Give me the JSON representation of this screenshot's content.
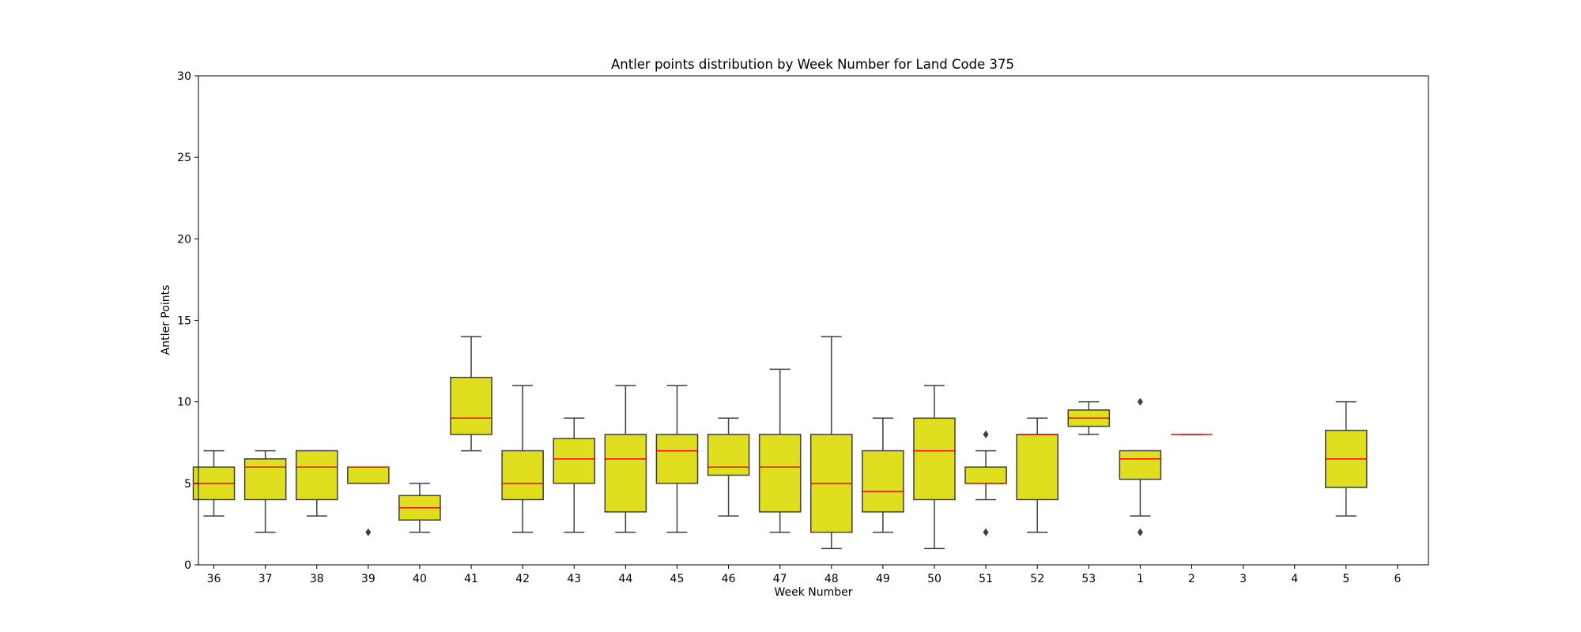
{
  "chart_data": {
    "type": "box",
    "title": "Antler points distribution by Week Number for Land Code 375",
    "xlabel": "Week Number",
    "ylabel": "Antler Points",
    "ylim": [
      0,
      30
    ],
    "yticks": [
      0,
      5,
      10,
      15,
      20,
      25,
      30
    ],
    "grid": false,
    "box_color": "#dfdf20",
    "median_color": "#ff0000",
    "line_color": "#3f3f3f",
    "categories": [
      "36",
      "37",
      "38",
      "39",
      "40",
      "41",
      "42",
      "43",
      "44",
      "45",
      "46",
      "47",
      "48",
      "49",
      "50",
      "51",
      "52",
      "53",
      "1",
      "2",
      "3",
      "4",
      "5",
      "6"
    ],
    "boxes": [
      {
        "week": "36",
        "whislo": 3,
        "q1": 4,
        "med": 5,
        "q3": 6,
        "whishi": 7,
        "fliers": []
      },
      {
        "week": "37",
        "whislo": 2,
        "q1": 4,
        "med": 6,
        "q3": 6.5,
        "whishi": 7,
        "fliers": []
      },
      {
        "week": "38",
        "whislo": 3,
        "q1": 4,
        "med": 6,
        "q3": 7,
        "whishi": 7,
        "fliers": []
      },
      {
        "week": "39",
        "whislo": 5,
        "q1": 5,
        "med": 6,
        "q3": 6,
        "whishi": 6,
        "fliers": [
          2
        ]
      },
      {
        "week": "40",
        "whislo": 2,
        "q1": 2.75,
        "med": 3.5,
        "q3": 4.25,
        "whishi": 5,
        "fliers": []
      },
      {
        "week": "41",
        "whislo": 7,
        "q1": 8,
        "med": 9,
        "q3": 11.5,
        "whishi": 14,
        "fliers": []
      },
      {
        "week": "42",
        "whislo": 2,
        "q1": 4,
        "med": 5,
        "q3": 7,
        "whishi": 11,
        "fliers": []
      },
      {
        "week": "43",
        "whislo": 2,
        "q1": 5,
        "med": 6.5,
        "q3": 7.75,
        "whishi": 9,
        "fliers": []
      },
      {
        "week": "44",
        "whislo": 2,
        "q1": 3.25,
        "med": 6.5,
        "q3": 8,
        "whishi": 11,
        "fliers": []
      },
      {
        "week": "45",
        "whislo": 2,
        "q1": 5,
        "med": 7,
        "q3": 8,
        "whishi": 11,
        "fliers": []
      },
      {
        "week": "46",
        "whislo": 3,
        "q1": 5.5,
        "med": 6,
        "q3": 8,
        "whishi": 9,
        "fliers": []
      },
      {
        "week": "47",
        "whislo": 2,
        "q1": 3.25,
        "med": 6,
        "q3": 8,
        "whishi": 12,
        "fliers": []
      },
      {
        "week": "48",
        "whislo": 1,
        "q1": 2,
        "med": 5,
        "q3": 8,
        "whishi": 14,
        "fliers": []
      },
      {
        "week": "49",
        "whislo": 2,
        "q1": 3.25,
        "med": 4.5,
        "q3": 7,
        "whishi": 9,
        "fliers": []
      },
      {
        "week": "50",
        "whislo": 1,
        "q1": 4,
        "med": 7,
        "q3": 9,
        "whishi": 11,
        "fliers": []
      },
      {
        "week": "51",
        "whislo": 4,
        "q1": 5,
        "med": 5,
        "q3": 6,
        "whishi": 7,
        "fliers": [
          8,
          2
        ]
      },
      {
        "week": "52",
        "whislo": 2,
        "q1": 4,
        "med": 8,
        "q3": 8,
        "whishi": 9,
        "fliers": []
      },
      {
        "week": "53",
        "whislo": 8,
        "q1": 8.5,
        "med": 9,
        "q3": 9.5,
        "whishi": 10,
        "fliers": []
      },
      {
        "week": "1",
        "whislo": 3,
        "q1": 5.25,
        "med": 6.5,
        "q3": 7,
        "whishi": 7,
        "fliers": [
          10,
          2
        ]
      },
      {
        "week": "2",
        "whislo": 8,
        "q1": 8,
        "med": 8,
        "q3": 8,
        "whishi": 8,
        "fliers": []
      },
      {
        "week": "5",
        "whislo": 3,
        "q1": 4.75,
        "med": 6.5,
        "q3": 8.25,
        "whishi": 10,
        "fliers": []
      }
    ]
  }
}
